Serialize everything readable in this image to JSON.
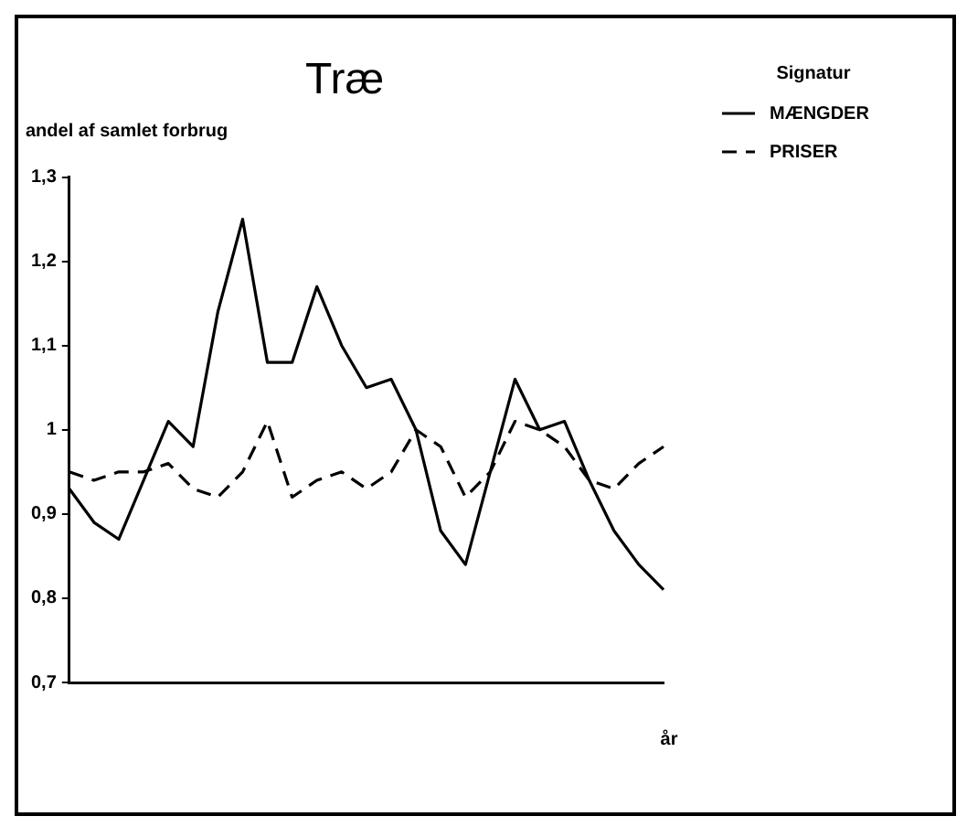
{
  "chart_data": {
    "type": "line",
    "title": "Træ",
    "ylabel": "andel af samlet forbrug",
    "xlabel": "år",
    "legend_title": "Signatur",
    "legend": "top right",
    "grid": false,
    "marker": "none",
    "categories": [
      null,
      null,
      null,
      null,
      null,
      null,
      null,
      null,
      null,
      null,
      null,
      null,
      null,
      null,
      null,
      null,
      null,
      null,
      null,
      null,
      null,
      null,
      null,
      null,
      null
    ],
    "ylim": [
      0.7,
      1.3
    ],
    "yticks": [
      {
        "value": 0.7,
        "label": "0,7"
      },
      {
        "value": 0.8,
        "label": "0,8"
      },
      {
        "value": 0.9,
        "label": "0,9"
      },
      {
        "value": 1,
        "label": "1"
      },
      {
        "value": 1.1,
        "label": "1,1"
      },
      {
        "value": 1.2,
        "label": "1,2"
      },
      {
        "value": 1.3,
        "label": "1,3"
      }
    ],
    "series": [
      {
        "name": "MÆNGDER",
        "color": "#000000",
        "line_style": "solid",
        "values": [
          0.93,
          0.89,
          0.87,
          0.94,
          1.01,
          0.98,
          1.14,
          1.25,
          1.08,
          1.08,
          1.17,
          1.1,
          1.05,
          1.06,
          1.0,
          0.88,
          0.84,
          0.95,
          1.06,
          1.0,
          1.01,
          0.94,
          0.88,
          0.84,
          0.81
        ]
      },
      {
        "name": "PRISER",
        "color": "#000000",
        "line_style": "dashed",
        "values": [
          0.95,
          0.94,
          0.95,
          0.95,
          0.96,
          0.93,
          0.92,
          0.95,
          1.01,
          0.92,
          0.94,
          0.95,
          0.93,
          0.95,
          1.0,
          0.98,
          0.92,
          0.95,
          1.01,
          1.0,
          0.98,
          0.94,
          0.93,
          0.96,
          0.98
        ]
      }
    ]
  }
}
